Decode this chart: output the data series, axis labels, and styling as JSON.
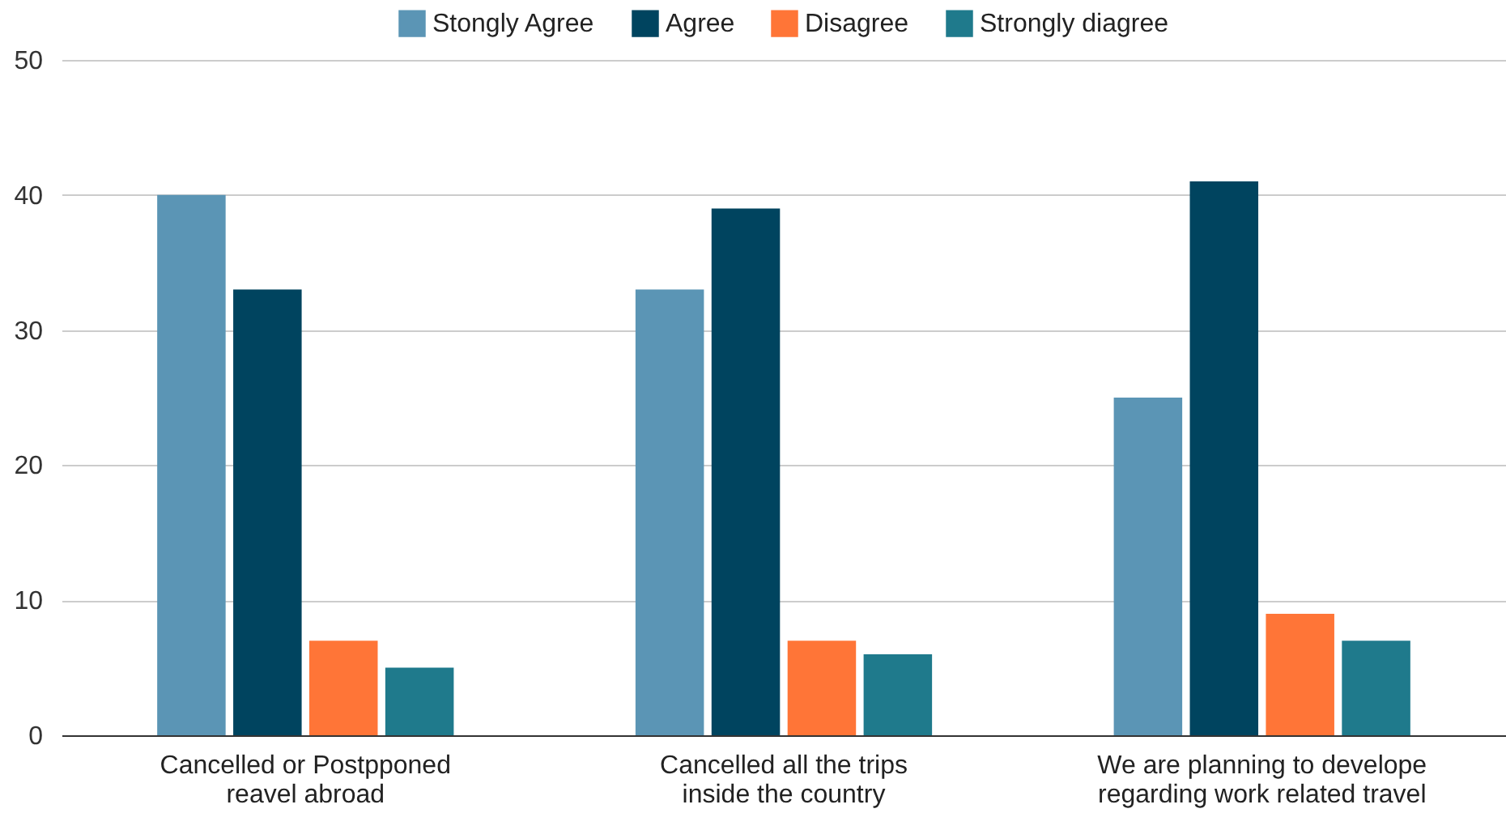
{
  "chart_data": {
    "type": "bar",
    "categories": [
      "Cancelled or Postpponed reavel abroad",
      "Cancelled all the trips inside the country",
      "We are planning to develope regarding work related travel"
    ],
    "series": [
      {
        "name": "Stongly Agree",
        "color": "#5b95b5",
        "values": [
          40,
          33,
          25
        ]
      },
      {
        "name": "Agree",
        "color": "#00445f",
        "values": [
          33,
          39,
          41
        ]
      },
      {
        "name": "Disagree",
        "color": "#ff7537",
        "values": [
          7,
          7,
          9
        ]
      },
      {
        "name": "Strongly diagree",
        "color": "#1f7a8c",
        "values": [
          5,
          6,
          7
        ]
      }
    ],
    "ylim": [
      0,
      50
    ],
    "yticks": [
      0,
      10,
      20,
      30,
      40,
      50
    ],
    "grid": "y",
    "legend": "top"
  }
}
